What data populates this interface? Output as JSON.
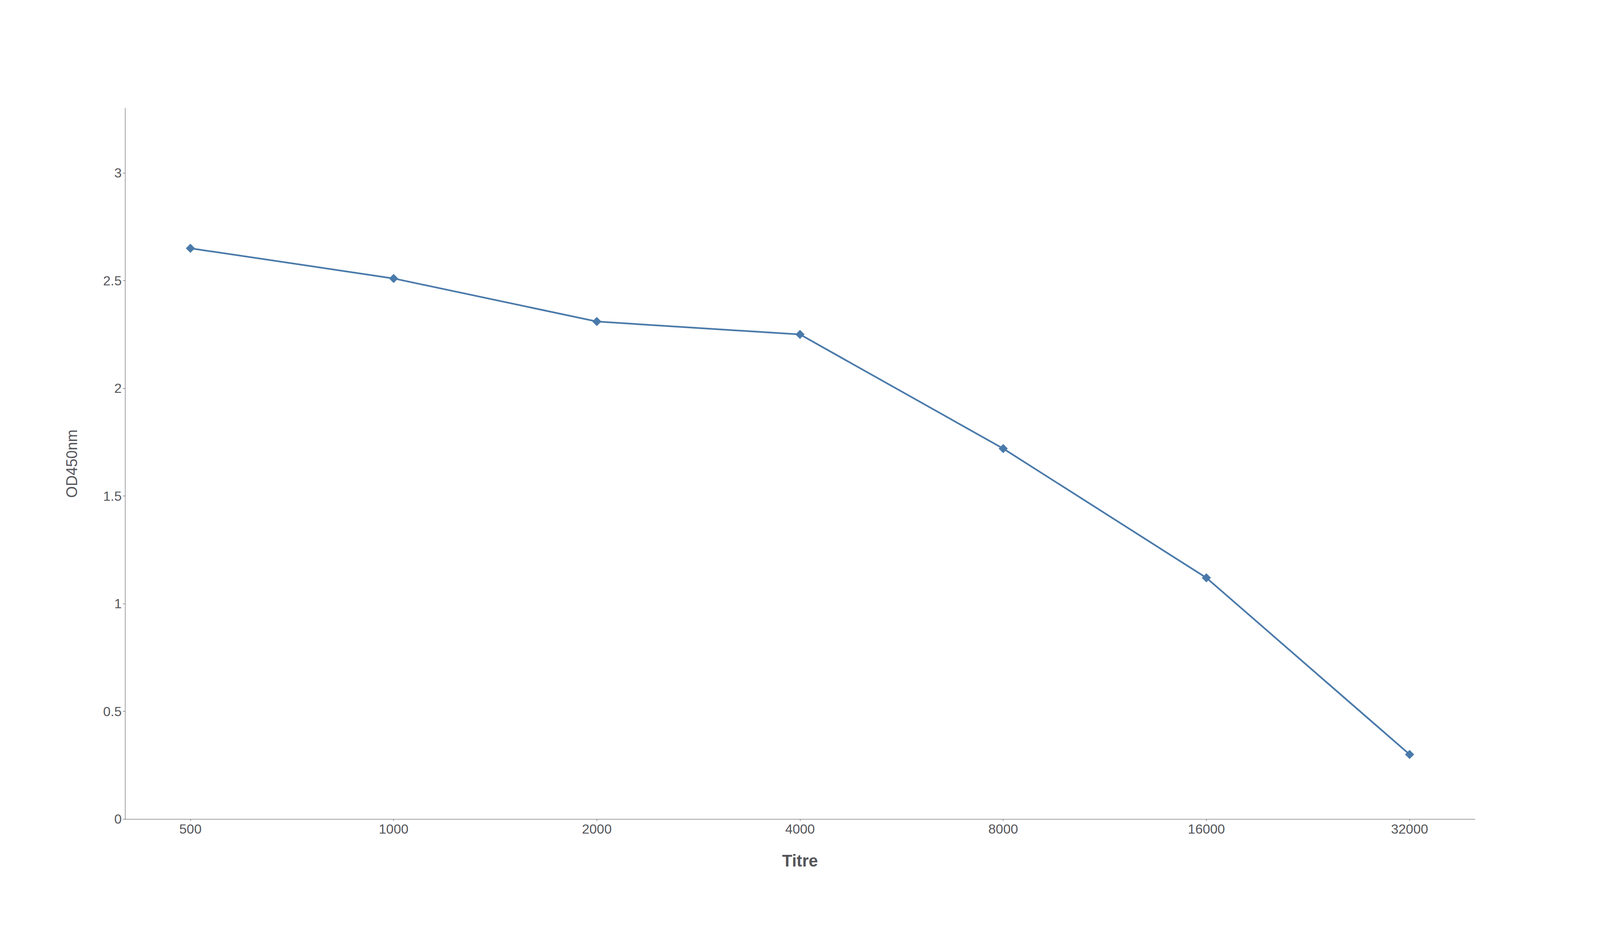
{
  "chart_data": {
    "type": "line",
    "x_label": "Titre",
    "y_label": "OD450nm",
    "x": [
      500,
      1000,
      2000,
      4000,
      8000,
      16000,
      32000
    ],
    "values": [
      2.65,
      2.51,
      2.31,
      2.25,
      1.72,
      1.12,
      0.3
    ],
    "xlim": [
      400,
      40000
    ],
    "xticks": [
      500,
      1000,
      2000,
      4000,
      8000,
      16000,
      32000
    ],
    "ylim": [
      0,
      3.3
    ],
    "yticks": [
      0,
      0.5,
      1,
      1.5,
      2,
      2.5,
      3
    ],
    "log": "x",
    "grid": false,
    "color": "#4a7aaa",
    "marker": "diamond"
  }
}
